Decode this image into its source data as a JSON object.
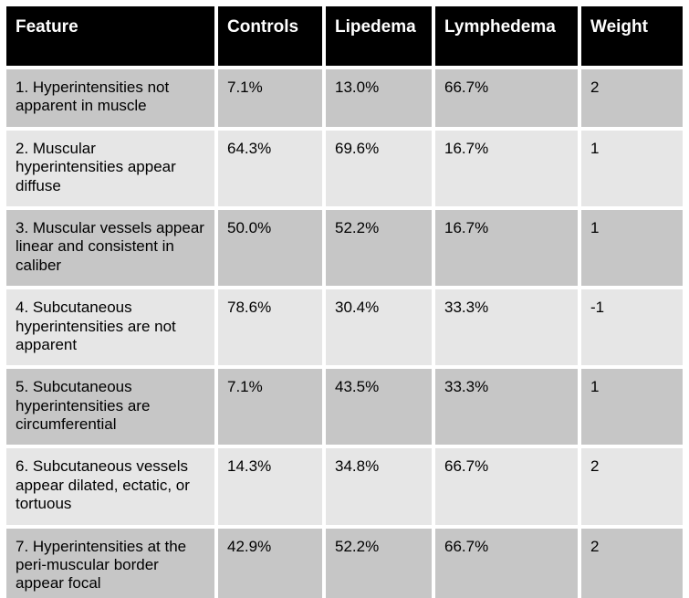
{
  "chart_data": {
    "type": "table",
    "columns": [
      "Feature",
      "Controls",
      "Lipedema",
      "Lymphedema",
      "Weight"
    ],
    "rows": [
      [
        "1. Hyperintensities not apparent in muscle",
        "7.1%",
        "13.0%",
        "66.7%",
        "2"
      ],
      [
        "2. Muscular hyperintensities appear diffuse",
        "64.3%",
        "69.6%",
        "16.7%",
        "1"
      ],
      [
        "3. Muscular vessels appear linear and consistent in caliber",
        "50.0%",
        "52.2%",
        "16.7%",
        "1"
      ],
      [
        "4. Subcutaneous hyperintensities are not apparent",
        "78.6%",
        "30.4%",
        "33.3%",
        "-1"
      ],
      [
        "5. Subcutaneous hyperintensities are circumferential",
        "7.1%",
        "43.5%",
        "33.3%",
        "1"
      ],
      [
        "6. Subcutaneous vessels appear dilated, ectatic, or tortuous",
        "14.3%",
        "34.8%",
        "66.7%",
        "2"
      ],
      [
        "7. Hyperintensities at the peri-muscular border appear focal",
        "42.9%",
        "52.2%",
        "66.7%",
        "2"
      ]
    ],
    "title": "",
    "legend": "none",
    "grid": "white gutters between cells"
  },
  "colors": {
    "header_bg": "#000000",
    "header_text": "#ffffff",
    "row_odd_bg": "#c6c6c6",
    "row_even_bg": "#e6e6e6",
    "body_text": "#000000",
    "gap": "#ffffff"
  }
}
